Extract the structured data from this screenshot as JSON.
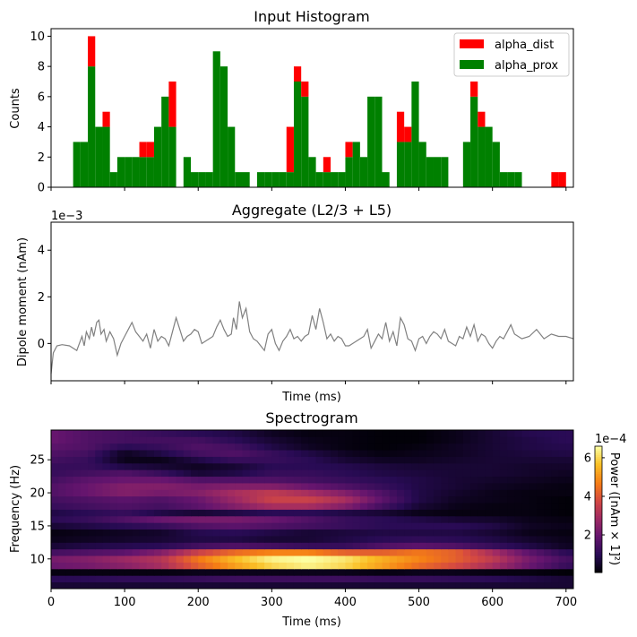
{
  "chart_data": [
    {
      "type": "bar",
      "stacked": true,
      "title": "Input Histogram",
      "xlabel": "",
      "ylabel": "Counts",
      "xlim": [
        0,
        710
      ],
      "ylim": [
        0,
        10.5
      ],
      "yticks": [
        0,
        2,
        4,
        6,
        8,
        10
      ],
      "bin_width": 10,
      "legend": {
        "position": "top-right"
      },
      "series": [
        {
          "name": "alpha_dist",
          "color": "#ff0000",
          "bins_start": [
            30,
            40,
            50,
            60,
            70,
            80,
            90,
            100,
            110,
            120,
            130,
            140,
            150,
            160,
            170,
            180,
            190,
            200,
            210,
            220,
            230,
            240,
            250,
            260,
            270,
            280,
            290,
            300,
            310,
            320,
            330,
            340,
            350,
            360,
            370,
            380,
            390,
            400,
            410,
            420,
            430,
            440,
            450,
            460,
            470,
            480,
            490,
            500,
            510,
            520,
            530,
            540,
            550,
            560,
            570,
            580,
            590,
            600,
            610,
            620,
            630,
            640,
            650,
            660,
            670,
            680,
            690
          ],
          "values": [
            0,
            0,
            2,
            0,
            1,
            0,
            0,
            0,
            0,
            1,
            1,
            0,
            0,
            3,
            0,
            0,
            0,
            0,
            0,
            0,
            0,
            0,
            0,
            0,
            0,
            0,
            0,
            0,
            0,
            3,
            1,
            1,
            0,
            0,
            1,
            0,
            0,
            1,
            0,
            0,
            0,
            0,
            0,
            0,
            2,
            1,
            0,
            0,
            0,
            0,
            0,
            0,
            0,
            0,
            1,
            1,
            0,
            0,
            0,
            0,
            0,
            0,
            0,
            0,
            0,
            1,
            1
          ]
        },
        {
          "name": "alpha_prox",
          "color": "#008000",
          "bins_start": [
            30,
            40,
            50,
            60,
            70,
            80,
            90,
            100,
            110,
            120,
            130,
            140,
            150,
            160,
            170,
            180,
            190,
            200,
            210,
            220,
            230,
            240,
            250,
            260,
            270,
            280,
            290,
            300,
            310,
            320,
            330,
            340,
            350,
            360,
            370,
            380,
            390,
            400,
            410,
            420,
            430,
            440,
            450,
            460,
            470,
            480,
            490,
            500,
            510,
            520,
            530,
            540,
            550,
            560,
            570,
            580,
            590,
            600,
            610,
            620,
            630,
            640,
            650,
            660,
            670,
            680,
            690
          ],
          "values": [
            3,
            3,
            8,
            4,
            4,
            1,
            2,
            2,
            2,
            2,
            2,
            4,
            6,
            4,
            0,
            2,
            1,
            1,
            1,
            9,
            8,
            4,
            1,
            1,
            0,
            1,
            1,
            1,
            1,
            1,
            7,
            6,
            2,
            1,
            1,
            1,
            1,
            2,
            3,
            2,
            6,
            6,
            1,
            0,
            3,
            3,
            7,
            3,
            2,
            2,
            2,
            0,
            0,
            3,
            6,
            4,
            4,
            3,
            1,
            1,
            1,
            0,
            0,
            0,
            0,
            0,
            0
          ]
        }
      ]
    },
    {
      "type": "line",
      "title": "Aggregate (L2/3 + L5)",
      "xlabel": "Time (ms)",
      "ylabel": "Dipole moment (nAm)",
      "offset_text": "1e−3",
      "xlim": [
        0,
        710
      ],
      "ylim": [
        -1.6,
        5.2
      ],
      "yticks": [
        0,
        2,
        4
      ],
      "series": [
        {
          "name": "",
          "color": "#808080",
          "x": [
            0,
            3,
            8,
            15,
            25,
            35,
            42,
            45,
            48,
            52,
            55,
            58,
            62,
            65,
            68,
            72,
            75,
            80,
            85,
            90,
            95,
            100,
            105,
            110,
            115,
            120,
            125,
            130,
            135,
            140,
            145,
            150,
            155,
            160,
            165,
            170,
            175,
            180,
            185,
            190,
            195,
            200,
            205,
            210,
            215,
            220,
            225,
            230,
            235,
            240,
            245,
            248,
            252,
            256,
            260,
            265,
            270,
            275,
            280,
            285,
            290,
            295,
            300,
            305,
            310,
            315,
            320,
            325,
            330,
            335,
            340,
            345,
            350,
            355,
            360,
            365,
            370,
            375,
            380,
            385,
            390,
            395,
            400,
            405,
            410,
            415,
            420,
            425,
            430,
            435,
            440,
            445,
            450,
            455,
            460,
            465,
            470,
            475,
            480,
            485,
            490,
            495,
            500,
            505,
            510,
            515,
            520,
            525,
            530,
            535,
            540,
            545,
            550,
            555,
            560,
            565,
            570,
            575,
            580,
            585,
            590,
            595,
            600,
            605,
            610,
            615,
            620,
            625,
            630,
            640,
            650,
            660,
            670,
            680,
            690,
            700,
            710
          ],
          "y": [
            -1.3,
            -0.4,
            -0.1,
            -0.05,
            -0.1,
            -0.3,
            0.3,
            -0.1,
            0.5,
            0.2,
            0.7,
            0.3,
            0.9,
            1.0,
            0.4,
            0.6,
            0.1,
            0.5,
            0.2,
            -0.5,
            0.0,
            0.3,
            0.6,
            0.9,
            0.5,
            0.3,
            0.1,
            0.4,
            -0.2,
            0.6,
            0.1,
            0.3,
            0.2,
            -0.1,
            0.5,
            1.1,
            0.6,
            0.1,
            0.3,
            0.4,
            0.6,
            0.5,
            0.0,
            0.1,
            0.2,
            0.3,
            0.7,
            1.0,
            0.6,
            0.3,
            0.4,
            1.1,
            0.6,
            1.8,
            1.1,
            1.5,
            0.5,
            0.2,
            0.1,
            -0.1,
            -0.3,
            0.4,
            0.6,
            0.0,
            -0.3,
            0.1,
            0.3,
            0.6,
            0.2,
            0.3,
            0.1,
            0.3,
            0.4,
            1.2,
            0.6,
            1.5,
            0.9,
            0.2,
            0.4,
            0.1,
            0.3,
            0.2,
            -0.1,
            -0.1,
            0.0,
            0.1,
            0.2,
            0.3,
            0.6,
            -0.2,
            0.1,
            0.4,
            0.2,
            0.9,
            0.1,
            0.5,
            -0.1,
            1.1,
            0.8,
            0.2,
            0.1,
            -0.3,
            0.2,
            0.3,
            0.0,
            0.3,
            0.5,
            0.4,
            0.2,
            0.6,
            0.1,
            0.0,
            -0.1,
            0.3,
            0.2,
            0.7,
            0.3,
            0.8,
            0.1,
            0.4,
            0.3,
            0.0,
            -0.2,
            0.1,
            0.3,
            0.2,
            0.5,
            0.8,
            0.4,
            0.2,
            0.3,
            0.6,
            0.2,
            0.4,
            0.3,
            0.3,
            0.2
          ]
        }
      ]
    },
    {
      "type": "heatmap",
      "title": "Spectrogram",
      "xlabel": "Time (ms)",
      "ylabel": "Frequency (Hz)",
      "xlim": [
        0,
        710
      ],
      "ylim": [
        5.5,
        29.5
      ],
      "xticks": [
        0,
        100,
        200,
        300,
        400,
        500,
        600,
        700
      ],
      "yticks": [
        10,
        15,
        20,
        25
      ],
      "colormap": "inferno",
      "colorbar": {
        "label": "Power ([nAm × 1]²)",
        "offset_text": "1e−4",
        "ticks": [
          2,
          4,
          6
        ],
        "range": [
          0.05,
          6.6
        ]
      },
      "freqs": [
        6,
        7,
        8,
        9,
        10,
        11,
        12,
        13,
        14,
        15,
        16,
        17,
        18,
        19,
        20,
        21,
        22,
        23,
        24,
        25,
        26,
        27,
        28,
        29
      ],
      "times": [
        0,
        50,
        100,
        150,
        200,
        250,
        300,
        350,
        400,
        450,
        500,
        550,
        600,
        650,
        700
      ],
      "power_e4": [
        [
          0.6,
          0.6,
          0.6,
          0.6,
          0.6,
          0.6,
          0.6,
          0.6,
          0.6,
          0.6,
          0.6,
          0.6,
          0.6,
          0.6,
          0.6
        ],
        [
          1.0,
          1.0,
          1.1,
          1.1,
          1.2,
          1.3,
          1.3,
          1.3,
          1.3,
          1.2,
          1.2,
          1.1,
          1.0,
          0.8,
          0.6
        ],
        [
          0.2,
          0.2,
          0.2,
          0.2,
          0.3,
          0.3,
          0.3,
          0.3,
          0.3,
          0.2,
          0.3,
          0.3,
          0.2,
          0.2,
          0.1
        ],
        [
          2.0,
          2.2,
          2.5,
          3.0,
          4.2,
          5.2,
          6.0,
          6.4,
          6.0,
          5.2,
          4.4,
          3.8,
          3.0,
          2.0,
          1.2
        ],
        [
          2.2,
          2.4,
          2.8,
          3.2,
          4.6,
          5.6,
          6.4,
          6.6,
          6.2,
          5.4,
          4.8,
          4.2,
          3.4,
          2.2,
          1.4
        ],
        [
          1.4,
          1.6,
          1.8,
          2.4,
          3.6,
          4.4,
          4.8,
          4.8,
          4.2,
          4.2,
          4.6,
          4.2,
          3.0,
          1.8,
          1.0
        ],
        [
          0.6,
          0.8,
          0.9,
          1.0,
          1.4,
          1.6,
          1.4,
          1.2,
          1.2,
          1.6,
          1.8,
          1.6,
          1.2,
          0.8,
          0.4
        ],
        [
          0.3,
          0.4,
          0.5,
          0.6,
          0.8,
          0.8,
          0.6,
          0.6,
          0.8,
          1.0,
          1.1,
          1.0,
          0.8,
          0.5,
          0.3
        ],
        [
          0.2,
          0.3,
          0.4,
          0.5,
          0.9,
          1.0,
          0.8,
          0.6,
          0.7,
          0.8,
          0.8,
          0.8,
          0.6,
          0.3,
          0.2
        ],
        [
          0.6,
          0.8,
          1.0,
          1.2,
          1.6,
          1.8,
          1.6,
          1.4,
          1.2,
          1.0,
          1.0,
          1.0,
          0.8,
          0.4,
          0.3
        ],
        [
          1.0,
          1.2,
          1.6,
          2.0,
          2.2,
          2.2,
          2.0,
          1.6,
          1.2,
          1.0,
          0.8,
          0.6,
          0.5,
          0.3,
          0.2
        ],
        [
          0.8,
          1.0,
          1.2,
          0.8,
          0.6,
          0.8,
          1.0,
          1.0,
          0.8,
          0.6,
          0.3,
          0.2,
          0.2,
          0.2,
          0.1
        ],
        [
          1.2,
          1.4,
          1.6,
          1.4,
          1.8,
          2.4,
          3.0,
          3.0,
          2.4,
          1.4,
          0.6,
          0.3,
          0.2,
          0.2,
          0.1
        ],
        [
          1.4,
          1.6,
          1.8,
          1.6,
          2.0,
          2.8,
          3.6,
          3.6,
          3.0,
          1.8,
          0.8,
          0.4,
          0.3,
          0.2,
          0.1
        ],
        [
          1.6,
          2.0,
          2.4,
          2.2,
          2.4,
          3.0,
          3.4,
          3.0,
          2.4,
          1.6,
          0.8,
          0.5,
          0.3,
          0.2,
          0.2
        ],
        [
          1.6,
          2.0,
          2.4,
          2.4,
          2.2,
          2.4,
          2.4,
          2.0,
          1.6,
          1.2,
          0.8,
          0.6,
          0.4,
          0.3,
          0.2
        ],
        [
          1.4,
          1.8,
          2.0,
          2.0,
          1.6,
          1.6,
          1.6,
          1.4,
          1.2,
          1.0,
          0.8,
          0.6,
          0.5,
          0.4,
          0.3
        ],
        [
          1.2,
          1.4,
          1.6,
          1.2,
          0.6,
          0.8,
          1.2,
          1.2,
          1.0,
          0.8,
          0.7,
          0.6,
          0.6,
          0.5,
          0.4
        ],
        [
          1.2,
          1.2,
          0.8,
          0.6,
          0.4,
          0.6,
          1.0,
          1.0,
          0.9,
          0.7,
          0.6,
          0.6,
          0.6,
          0.5,
          0.5
        ],
        [
          1.4,
          1.2,
          0.3,
          0.3,
          0.8,
          1.2,
          1.2,
          1.0,
          0.6,
          0.4,
          0.4,
          0.5,
          0.6,
          0.6,
          0.6
        ],
        [
          1.6,
          1.4,
          0.4,
          0.8,
          1.4,
          1.6,
          1.2,
          0.8,
          0.4,
          0.2,
          0.3,
          0.4,
          0.6,
          0.7,
          0.8
        ],
        [
          1.8,
          1.6,
          1.0,
          1.2,
          1.6,
          1.4,
          0.8,
          0.4,
          0.2,
          0.1,
          0.2,
          0.4,
          0.6,
          0.8,
          0.9
        ],
        [
          2.0,
          1.6,
          1.4,
          1.4,
          1.4,
          1.0,
          0.6,
          0.3,
          0.2,
          0.1,
          0.1,
          0.3,
          0.6,
          0.8,
          1.0
        ],
        [
          2.0,
          1.6,
          1.4,
          1.2,
          1.0,
          0.8,
          0.4,
          0.2,
          0.2,
          0.1,
          0.1,
          0.3,
          0.6,
          0.9,
          1.0
        ]
      ]
    }
  ]
}
